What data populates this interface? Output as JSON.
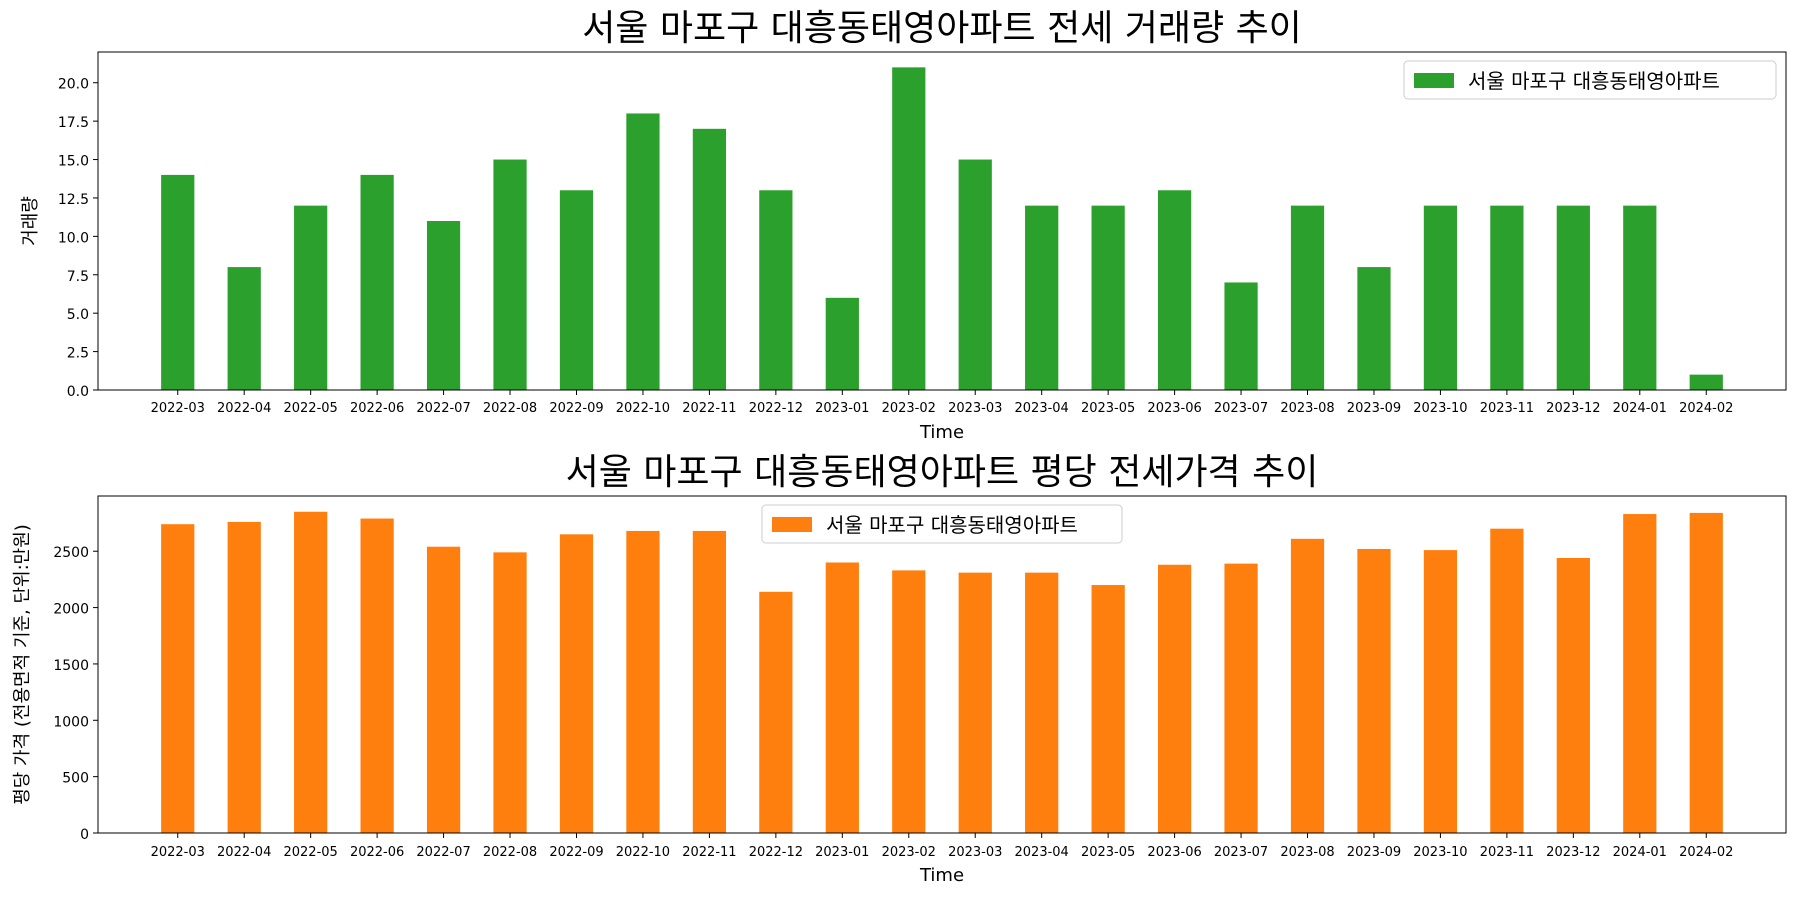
{
  "chart_data": [
    {
      "type": "bar",
      "title": "서울 마포구 대흥동태영아파트 전세 거래량 추이",
      "xlabel": "Time",
      "ylabel": "거래량",
      "ylim": [
        0,
        22
      ],
      "yticks": [
        "0.0",
        "2.5",
        "5.0",
        "7.5",
        "10.0",
        "12.5",
        "15.0",
        "17.5",
        "20.0"
      ],
      "legend_position": "top-right",
      "categories": [
        "2022-03",
        "2022-04",
        "2022-05",
        "2022-06",
        "2022-07",
        "2022-08",
        "2022-09",
        "2022-10",
        "2022-11",
        "2022-12",
        "2023-01",
        "2023-02",
        "2023-03",
        "2023-04",
        "2023-05",
        "2023-06",
        "2023-07",
        "2023-08",
        "2023-09",
        "2023-10",
        "2023-11",
        "2023-12",
        "2024-01",
        "2024-02"
      ],
      "series": [
        {
          "name": "서울 마포구 대흥동태영아파트",
          "color": "#2ca02c",
          "values": [
            14,
            8,
            12,
            14,
            11,
            15,
            13,
            18,
            17,
            13,
            6,
            21,
            15,
            12,
            12,
            13,
            7,
            12,
            8,
            12,
            12,
            12,
            12,
            1
          ]
        }
      ]
    },
    {
      "type": "bar",
      "title": "서울 마포구 대흥동태영아파트 평당 전세가격 추이",
      "xlabel": "Time",
      "ylabel": "평당 가격 (전용면적 기준, 단위:만원)",
      "ylim": [
        0,
        2990
      ],
      "yticks": [
        "0",
        "500",
        "1000",
        "1500",
        "2000",
        "2500"
      ],
      "legend_position": "top-center",
      "categories": [
        "2022-03",
        "2022-04",
        "2022-05",
        "2022-06",
        "2022-07",
        "2022-08",
        "2022-09",
        "2022-10",
        "2022-11",
        "2022-12",
        "2023-01",
        "2023-02",
        "2023-03",
        "2023-04",
        "2023-05",
        "2023-06",
        "2023-07",
        "2023-08",
        "2023-09",
        "2023-10",
        "2023-11",
        "2023-12",
        "2024-01",
        "2024-02"
      ],
      "series": [
        {
          "name": "서울 마포구 대흥동태영아파트",
          "color": "#ff7f0e",
          "values": [
            2740,
            2760,
            2850,
            2790,
            2540,
            2490,
            2650,
            2680,
            2680,
            2140,
            2400,
            2330,
            2310,
            2310,
            2200,
            2380,
            2390,
            2610,
            2520,
            2510,
            2700,
            2440,
            2830,
            2840
          ]
        }
      ]
    }
  ]
}
